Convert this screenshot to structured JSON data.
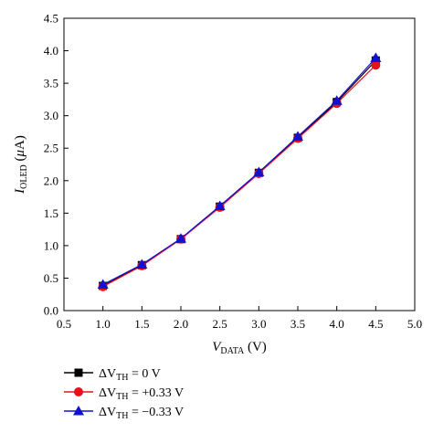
{
  "chart_data": {
    "type": "line",
    "xlabel": {
      "main": "V",
      "sub": "DATA",
      "unit": " (V)"
    },
    "ylabel": {
      "main": "I",
      "sub": "OLED",
      "unit_pre": " (",
      "mu": "μ",
      "unit_post": "A)"
    },
    "xlim": [
      0.5,
      5.0
    ],
    "ylim": [
      0.0,
      4.5
    ],
    "xticks": [
      "0.5",
      "1.0",
      "1.5",
      "2.0",
      "2.5",
      "3.0",
      "3.5",
      "4.0",
      "4.5",
      "5.0"
    ],
    "yticks": [
      "0.0",
      "0.5",
      "1.0",
      "1.5",
      "2.0",
      "2.5",
      "3.0",
      "3.5",
      "4.0",
      "4.5"
    ],
    "x": [
      1.0,
      1.5,
      2.0,
      2.5,
      3.0,
      3.5,
      4.0,
      4.5
    ],
    "grid": false,
    "legend_position": "bottom-left-below",
    "series": [
      {
        "name": "ΔV_TH = 0 V",
        "legend": {
          "delta": "ΔV",
          "sub": "TH",
          "rest": " = 0 V"
        },
        "color": "#000000",
        "marker": "square",
        "values": [
          0.38,
          0.7,
          1.1,
          1.6,
          2.12,
          2.66,
          3.21,
          3.85
        ]
      },
      {
        "name": "ΔV_TH = +0.33 V",
        "legend": {
          "delta": "ΔV",
          "sub": "TH",
          "rest": " = +0.33 V"
        },
        "color": "#e8101a",
        "marker": "circle",
        "values": [
          0.37,
          0.69,
          1.1,
          1.59,
          2.11,
          2.65,
          3.19,
          3.78
        ]
      },
      {
        "name": "ΔV_TH = −0.33 V",
        "legend": {
          "delta": "ΔV",
          "sub": "TH",
          "rest": " = −0.33 V"
        },
        "color": "#1010d0",
        "marker": "triangle",
        "values": [
          0.4,
          0.71,
          1.11,
          1.61,
          2.13,
          2.68,
          3.23,
          3.89
        ]
      }
    ]
  }
}
